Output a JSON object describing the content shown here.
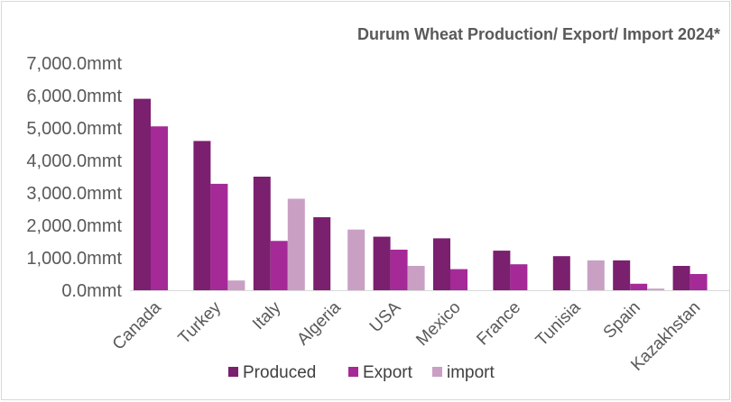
{
  "chart_data": {
    "type": "bar",
    "title": "Durum Wheat Production/ Export/ Import 2024*",
    "xlabel": "",
    "ylabel": "",
    "ylim": [
      0,
      7000
    ],
    "y_tick_labels": [
      "0.0mmt",
      "1,000.0mmt",
      "2,000.0mmt",
      "3,000.0mmt",
      "4,000.0mmt",
      "5,000.0mmt",
      "6,000.0mmt",
      "7,000.0mmt"
    ],
    "y_ticks": [
      0,
      1000,
      2000,
      3000,
      4000,
      5000,
      6000,
      7000
    ],
    "categories": [
      "Canada",
      "Turkey",
      "Italy",
      "Algeria",
      "USA",
      "Mexico",
      "France",
      "Tunisia",
      "Spain",
      "Kazakhstan"
    ],
    "series": [
      {
        "name": "Produced",
        "color": "#7b1f6f",
        "values": [
          5900,
          4600,
          3500,
          2250,
          1650,
          1600,
          1220,
          1050,
          920,
          750
        ]
      },
      {
        "name": "Export",
        "color": "#a52a98",
        "values": [
          5050,
          3280,
          1520,
          0,
          1250,
          650,
          800,
          0,
          200,
          500
        ]
      },
      {
        "name": "import",
        "color": "#c9a0c4",
        "values": [
          0,
          300,
          2820,
          1870,
          750,
          0,
          0,
          920,
          50,
          0
        ]
      }
    ],
    "grid": false,
    "legend_position": "bottom"
  }
}
